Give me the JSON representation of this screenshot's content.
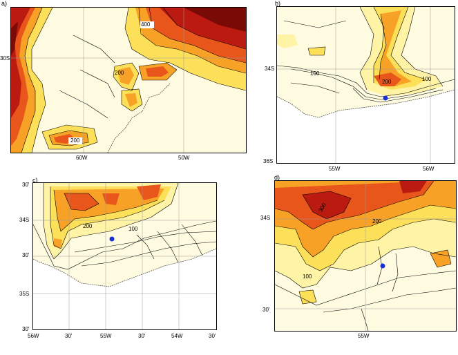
{
  "panels": [
    {
      "id": "a",
      "label": "a)",
      "lat_ticks": [
        "30S"
      ],
      "lon_ticks": [
        "60W",
        "50W"
      ],
      "contour_labels": [
        "400",
        "200",
        "200"
      ],
      "markers": []
    },
    {
      "id": "b",
      "label": "b)",
      "lat_ticks": [
        "34S",
        "36S"
      ],
      "lon_ticks": [
        "55W",
        "56W"
      ],
      "contour_labels": [
        "100",
        "200",
        "100"
      ],
      "markers": [
        {
          "name": "station",
          "color": "#1a2fd6"
        }
      ]
    },
    {
      "id": "c",
      "label": "c)",
      "lat_ticks": [
        "30'",
        "34S",
        "30'",
        "35S",
        "30'"
      ],
      "lon_ticks": [
        "56W",
        "30'",
        "55W",
        "30'",
        "54W",
        "30'"
      ],
      "contour_labels": [
        "200",
        "100"
      ],
      "markers": [
        {
          "name": "station",
          "color": "#1a2fd6"
        }
      ]
    },
    {
      "id": "d",
      "label": "d)",
      "lat_ticks": [
        "34S",
        "30'"
      ],
      "lon_ticks": [
        "55W"
      ],
      "contour_labels": [
        "300",
        "200",
        "100"
      ],
      "markers": [
        {
          "name": "station",
          "color": "#1a2fd6"
        }
      ]
    }
  ],
  "colors": {
    "level1": "#fffbe0",
    "level2": "#fff3a6",
    "level3": "#fde05a",
    "level4": "#f7a226",
    "level5": "#e8561c",
    "level6": "#bb1a10",
    "level7": "#7a0a05",
    "contour": "#000000",
    "grid": "#9a9a9a"
  }
}
